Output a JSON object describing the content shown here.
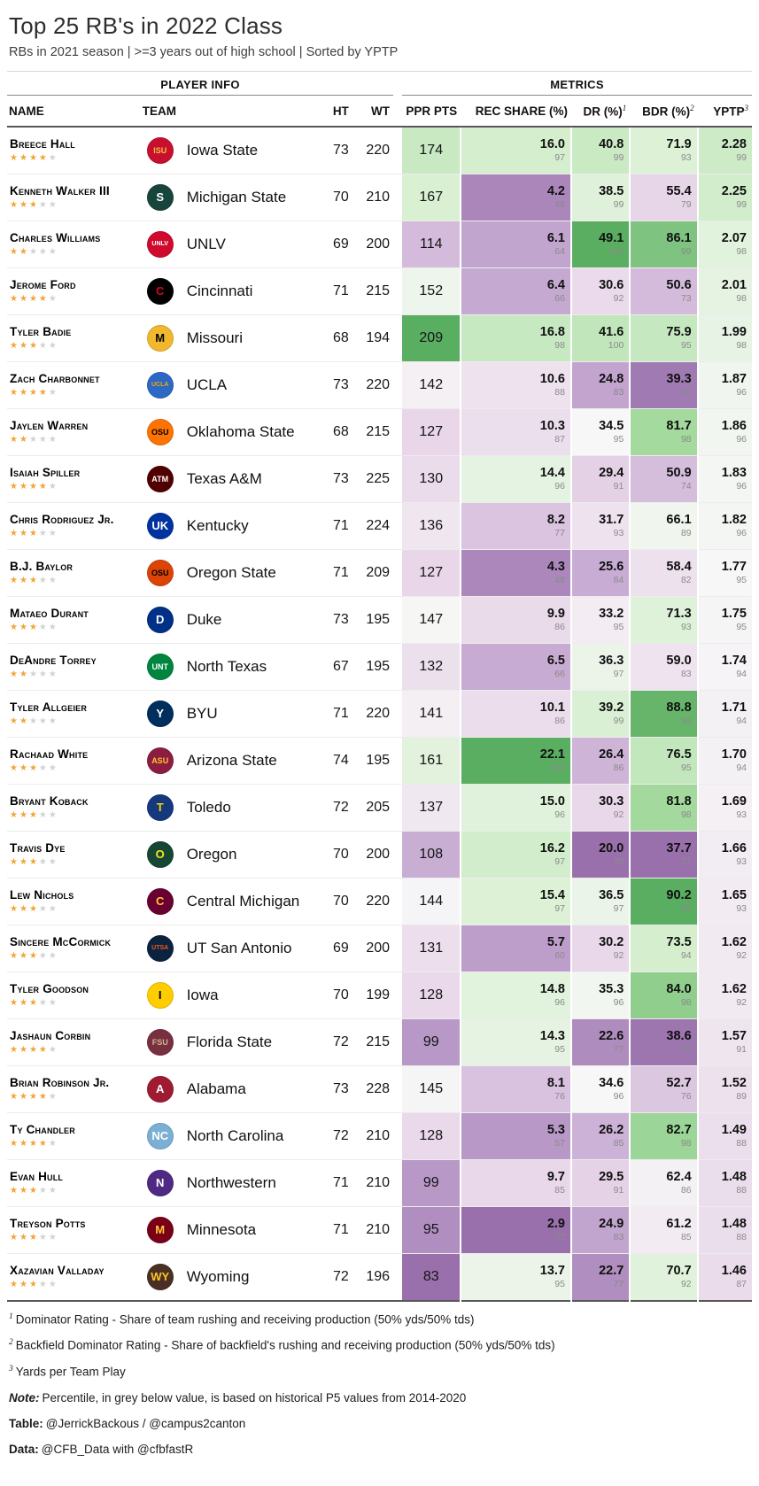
{
  "header": {
    "title": "Top 25 RB's in 2022 Class",
    "subtitle": "RBs in 2021 season | >=3 years out of high school | Sorted by YPTP"
  },
  "table": {
    "spanners": {
      "player_info": "PLAYER INFO",
      "metrics": "METRICS"
    },
    "columns": [
      {
        "key": "name",
        "label": "NAME"
      },
      {
        "key": "team",
        "label": "TEAM"
      },
      {
        "key": "ht",
        "label": "HT"
      },
      {
        "key": "wt",
        "label": "WT"
      },
      {
        "key": "ppr",
        "label": "PPR PTS"
      },
      {
        "key": "rec",
        "label": "REC SHARE (%)"
      },
      {
        "key": "dr",
        "label": "DR (%)",
        "sup": "1"
      },
      {
        "key": "bdr",
        "label": "BDR (%)",
        "sup": "2"
      },
      {
        "key": "yptp",
        "label": "YPTP",
        "sup": "3"
      }
    ]
  },
  "color_scale": {
    "palette": [
      "#9970ab",
      "#c2a5cf",
      "#e7d4e8",
      "#f7f7f7",
      "#d9f0d3",
      "#a6dba0",
      "#5aae61"
    ],
    "domains": {
      "ppr": [
        83,
        209
      ],
      "rec": [
        2.9,
        22.1
      ],
      "dr": [
        20.0,
        49.1
      ],
      "bdr": [
        37.7,
        90.2
      ],
      "yptp": [
        0.55,
        3.0
      ]
    },
    "percentile_text": "#8a8a8a",
    "star_gold": "#f2a43a",
    "star_grey": "#d2d2d2"
  },
  "chart_data": {
    "type": "table",
    "title": "Top 25 RB's in 2022 Class",
    "columns": [
      "NAME",
      "TEAM",
      "HT",
      "WT",
      "PPR PTS",
      "REC SHARE (%)",
      "DR (%)",
      "BDR (%)",
      "YPTP"
    ],
    "rows": [
      {
        "name": "Breece Hall",
        "stars": 4,
        "team": "Iowa State",
        "logo": {
          "abbr": "ISU",
          "bg": "#C8102E",
          "fg": "#F1BE48"
        },
        "ht": "73",
        "wt": "220",
        "ppr": "174",
        "rec": {
          "v": "16.0",
          "p": "97"
        },
        "dr": {
          "v": "40.8",
          "p": "99"
        },
        "bdr": {
          "v": "71.9",
          "p": "93"
        },
        "yptp": {
          "v": "2.28",
          "p": "99"
        }
      },
      {
        "name": "Kenneth Walker III",
        "stars": 3,
        "team": "Michigan State",
        "logo": {
          "abbr": "S",
          "bg": "#18453B",
          "fg": "#ffffff"
        },
        "ht": "70",
        "wt": "210",
        "ppr": "167",
        "rec": {
          "v": "4.2",
          "p": "46"
        },
        "dr": {
          "v": "38.5",
          "p": "99"
        },
        "bdr": {
          "v": "55.4",
          "p": "79"
        },
        "yptp": {
          "v": "2.25",
          "p": "99"
        }
      },
      {
        "name": "Charles Williams",
        "stars": 2,
        "team": "UNLV",
        "logo": {
          "abbr": "UNLV",
          "bg": "#CF0A2C",
          "fg": "#ffffff"
        },
        "ht": "69",
        "wt": "200",
        "ppr": "114",
        "rec": {
          "v": "6.1",
          "p": "64"
        },
        "dr": {
          "v": "49.1",
          "p": "100"
        },
        "bdr": {
          "v": "86.1",
          "p": "99"
        },
        "yptp": {
          "v": "2.07",
          "p": "98"
        }
      },
      {
        "name": "Jerome Ford",
        "stars": 4,
        "team": "Cincinnati",
        "logo": {
          "abbr": "C",
          "bg": "#000000",
          "fg": "#E00122"
        },
        "ht": "71",
        "wt": "215",
        "ppr": "152",
        "rec": {
          "v": "6.4",
          "p": "66"
        },
        "dr": {
          "v": "30.6",
          "p": "92"
        },
        "bdr": {
          "v": "50.6",
          "p": "73"
        },
        "yptp": {
          "v": "2.01",
          "p": "98"
        }
      },
      {
        "name": "Tyler Badie",
        "stars": 3,
        "team": "Missouri",
        "logo": {
          "abbr": "M",
          "bg": "#F1B82D",
          "fg": "#000000"
        },
        "ht": "68",
        "wt": "194",
        "ppr": "209",
        "rec": {
          "v": "16.8",
          "p": "98"
        },
        "dr": {
          "v": "41.6",
          "p": "100"
        },
        "bdr": {
          "v": "75.9",
          "p": "95"
        },
        "yptp": {
          "v": "1.99",
          "p": "98"
        }
      },
      {
        "name": "Zach Charbonnet",
        "stars": 4,
        "team": "UCLA",
        "logo": {
          "abbr": "UCLA",
          "bg": "#2D68C4",
          "fg": "#F2A900"
        },
        "ht": "73",
        "wt": "220",
        "ppr": "142",
        "rec": {
          "v": "10.6",
          "p": "88"
        },
        "dr": {
          "v": "24.8",
          "p": "83"
        },
        "bdr": {
          "v": "39.3",
          "p": "60"
        },
        "yptp": {
          "v": "1.87",
          "p": "96"
        }
      },
      {
        "name": "Jaylen Warren",
        "stars": 2,
        "team": "Oklahoma State",
        "logo": {
          "abbr": "OSU",
          "bg": "#FF7300",
          "fg": "#000000"
        },
        "ht": "68",
        "wt": "215",
        "ppr": "127",
        "rec": {
          "v": "10.3",
          "p": "87"
        },
        "dr": {
          "v": "34.5",
          "p": "95"
        },
        "bdr": {
          "v": "81.7",
          "p": "98"
        },
        "yptp": {
          "v": "1.86",
          "p": "96"
        }
      },
      {
        "name": "Isaiah Spiller",
        "stars": 4,
        "team": "Texas A&M",
        "logo": {
          "abbr": "ATM",
          "bg": "#500000",
          "fg": "#ffffff"
        },
        "ht": "73",
        "wt": "225",
        "ppr": "130",
        "rec": {
          "v": "14.4",
          "p": "96"
        },
        "dr": {
          "v": "29.4",
          "p": "91"
        },
        "bdr": {
          "v": "50.9",
          "p": "74"
        },
        "yptp": {
          "v": "1.83",
          "p": "96"
        }
      },
      {
        "name": "Chris Rodriguez Jr.",
        "stars": 3,
        "team": "Kentucky",
        "logo": {
          "abbr": "UK",
          "bg": "#0033A0",
          "fg": "#ffffff"
        },
        "ht": "71",
        "wt": "224",
        "ppr": "136",
        "rec": {
          "v": "8.2",
          "p": "77"
        },
        "dr": {
          "v": "31.7",
          "p": "93"
        },
        "bdr": {
          "v": "66.1",
          "p": "89"
        },
        "yptp": {
          "v": "1.82",
          "p": "96"
        }
      },
      {
        "name": "B.J. Baylor",
        "stars": 3,
        "team": "Oregon State",
        "logo": {
          "abbr": "OSU",
          "bg": "#DC4405",
          "fg": "#000000"
        },
        "ht": "71",
        "wt": "209",
        "ppr": "127",
        "rec": {
          "v": "4.3",
          "p": "48"
        },
        "dr": {
          "v": "25.6",
          "p": "84"
        },
        "bdr": {
          "v": "58.4",
          "p": "82"
        },
        "yptp": {
          "v": "1.77",
          "p": "95"
        }
      },
      {
        "name": "Mataeo Durant",
        "stars": 3,
        "team": "Duke",
        "logo": {
          "abbr": "D",
          "bg": "#003087",
          "fg": "#ffffff"
        },
        "ht": "73",
        "wt": "195",
        "ppr": "147",
        "rec": {
          "v": "9.9",
          "p": "86"
        },
        "dr": {
          "v": "33.2",
          "p": "95"
        },
        "bdr": {
          "v": "71.3",
          "p": "93"
        },
        "yptp": {
          "v": "1.75",
          "p": "95"
        }
      },
      {
        "name": "DeAndre Torrey",
        "stars": 2,
        "team": "North Texas",
        "logo": {
          "abbr": "UNT",
          "bg": "#00853E",
          "fg": "#ffffff"
        },
        "ht": "67",
        "wt": "195",
        "ppr": "132",
        "rec": {
          "v": "6.5",
          "p": "66"
        },
        "dr": {
          "v": "36.3",
          "p": "97"
        },
        "bdr": {
          "v": "59.0",
          "p": "83"
        },
        "yptp": {
          "v": "1.74",
          "p": "94"
        }
      },
      {
        "name": "Tyler Allgeier",
        "stars": 2,
        "team": "BYU",
        "logo": {
          "abbr": "Y",
          "bg": "#002E5D",
          "fg": "#ffffff"
        },
        "ht": "71",
        "wt": "220",
        "ppr": "141",
        "rec": {
          "v": "10.1",
          "p": "86"
        },
        "dr": {
          "v": "39.2",
          "p": "99"
        },
        "bdr": {
          "v": "88.8",
          "p": "99"
        },
        "yptp": {
          "v": "1.71",
          "p": "94"
        }
      },
      {
        "name": "Rachaad White",
        "stars": 3,
        "team": "Arizona State",
        "logo": {
          "abbr": "ASU",
          "bg": "#8C1D40",
          "fg": "#FFC627"
        },
        "ht": "74",
        "wt": "195",
        "ppr": "161",
        "rec": {
          "v": "22.1",
          "p": "100"
        },
        "dr": {
          "v": "26.4",
          "p": "86"
        },
        "bdr": {
          "v": "76.5",
          "p": "95"
        },
        "yptp": {
          "v": "1.70",
          "p": "94"
        }
      },
      {
        "name": "Bryant Koback",
        "stars": 3,
        "team": "Toledo",
        "logo": {
          "abbr": "T",
          "bg": "#15397F",
          "fg": "#FFD100"
        },
        "ht": "72",
        "wt": "205",
        "ppr": "137",
        "rec": {
          "v": "15.0",
          "p": "96"
        },
        "dr": {
          "v": "30.3",
          "p": "92"
        },
        "bdr": {
          "v": "81.8",
          "p": "98"
        },
        "yptp": {
          "v": "1.69",
          "p": "93"
        }
      },
      {
        "name": "Travis Dye",
        "stars": 3,
        "team": "Oregon",
        "logo": {
          "abbr": "O",
          "bg": "#154733",
          "fg": "#FEE123"
        },
        "ht": "70",
        "wt": "200",
        "ppr": "108",
        "rec": {
          "v": "16.2",
          "p": "97"
        },
        "dr": {
          "v": "20.0",
          "p": "70"
        },
        "bdr": {
          "v": "37.7",
          "p": "57"
        },
        "yptp": {
          "v": "1.66",
          "p": "93"
        }
      },
      {
        "name": "Lew Nichols",
        "stars": 3,
        "team": "Central Michigan",
        "logo": {
          "abbr": "C",
          "bg": "#6A0032",
          "fg": "#FFC82E"
        },
        "ht": "70",
        "wt": "220",
        "ppr": "144",
        "rec": {
          "v": "15.4",
          "p": "97"
        },
        "dr": {
          "v": "36.5",
          "p": "97"
        },
        "bdr": {
          "v": "90.2",
          "p": "99"
        },
        "yptp": {
          "v": "1.65",
          "p": "93"
        }
      },
      {
        "name": "Sincere McCormick",
        "stars": 3,
        "team": "UT San Antonio",
        "logo": {
          "abbr": "UTSA",
          "bg": "#0C2340",
          "fg": "#F15A22"
        },
        "ht": "69",
        "wt": "200",
        "ppr": "131",
        "rec": {
          "v": "5.7",
          "p": "60"
        },
        "dr": {
          "v": "30.2",
          "p": "92"
        },
        "bdr": {
          "v": "73.5",
          "p": "94"
        },
        "yptp": {
          "v": "1.62",
          "p": "92"
        }
      },
      {
        "name": "Tyler Goodson",
        "stars": 3,
        "team": "Iowa",
        "logo": {
          "abbr": "I",
          "bg": "#FFCD00",
          "fg": "#000000"
        },
        "ht": "70",
        "wt": "199",
        "ppr": "128",
        "rec": {
          "v": "14.8",
          "p": "96"
        },
        "dr": {
          "v": "35.3",
          "p": "96"
        },
        "bdr": {
          "v": "84.0",
          "p": "98"
        },
        "yptp": {
          "v": "1.62",
          "p": "92"
        }
      },
      {
        "name": "Jashaun Corbin",
        "stars": 4,
        "team": "Florida State",
        "logo": {
          "abbr": "FSU",
          "bg": "#782F40",
          "fg": "#CEB888"
        },
        "ht": "72",
        "wt": "215",
        "ppr": "99",
        "rec": {
          "v": "14.3",
          "p": "95"
        },
        "dr": {
          "v": "22.6",
          "p": "77"
        },
        "bdr": {
          "v": "38.6",
          "p": "59"
        },
        "yptp": {
          "v": "1.57",
          "p": "91"
        }
      },
      {
        "name": "Brian Robinson Jr.",
        "stars": 4,
        "team": "Alabama",
        "logo": {
          "abbr": "A",
          "bg": "#9E1B32",
          "fg": "#ffffff"
        },
        "ht": "73",
        "wt": "228",
        "ppr": "145",
        "rec": {
          "v": "8.1",
          "p": "76"
        },
        "dr": {
          "v": "34.6",
          "p": "96"
        },
        "bdr": {
          "v": "52.7",
          "p": "76"
        },
        "yptp": {
          "v": "1.52",
          "p": "89"
        }
      },
      {
        "name": "Ty Chandler",
        "stars": 4,
        "team": "North Carolina",
        "logo": {
          "abbr": "NC",
          "bg": "#7BAFD4",
          "fg": "#ffffff"
        },
        "ht": "72",
        "wt": "210",
        "ppr": "128",
        "rec": {
          "v": "5.3",
          "p": "57"
        },
        "dr": {
          "v": "26.2",
          "p": "85"
        },
        "bdr": {
          "v": "82.7",
          "p": "98"
        },
        "yptp": {
          "v": "1.49",
          "p": "88"
        }
      },
      {
        "name": "Evan Hull",
        "stars": 3,
        "team": "Northwestern",
        "logo": {
          "abbr": "N",
          "bg": "#4E2A84",
          "fg": "#ffffff"
        },
        "ht": "71",
        "wt": "210",
        "ppr": "99",
        "rec": {
          "v": "9.7",
          "p": "85"
        },
        "dr": {
          "v": "29.5",
          "p": "91"
        },
        "bdr": {
          "v": "62.4",
          "p": "86"
        },
        "yptp": {
          "v": "1.48",
          "p": "88"
        }
      },
      {
        "name": "Treyson Potts",
        "stars": 3,
        "team": "Minnesota",
        "logo": {
          "abbr": "M",
          "bg": "#7A0019",
          "fg": "#FFCC33"
        },
        "ht": "71",
        "wt": "210",
        "ppr": "95",
        "rec": {
          "v": "2.9",
          "p": "32"
        },
        "dr": {
          "v": "24.9",
          "p": "83"
        },
        "bdr": {
          "v": "61.2",
          "p": "85"
        },
        "yptp": {
          "v": "1.48",
          "p": "88"
        }
      },
      {
        "name": "Xazavian Valladay",
        "stars": 3,
        "team": "Wyoming",
        "logo": {
          "abbr": "WY",
          "bg": "#492F24",
          "fg": "#FFC425"
        },
        "ht": "72",
        "wt": "196",
        "ppr": "83",
        "rec": {
          "v": "13.7",
          "p": "95"
        },
        "dr": {
          "v": "22.7",
          "p": "77"
        },
        "bdr": {
          "v": "70.7",
          "p": "92"
        },
        "yptp": {
          "v": "1.46",
          "p": "87"
        }
      }
    ]
  },
  "footnotes": [
    {
      "sup": "1",
      "text": "Dominator Rating - Share of team rushing and receiving production (50% yds/50% tds)"
    },
    {
      "sup": "2",
      "text": "Backfield Dominator Rating - Share of backfield's rushing and receiving production (50% yds/50% tds)"
    },
    {
      "sup": "3",
      "text": "Yards per Team Play"
    }
  ],
  "notes": {
    "note_label": "Note:",
    "note_text": "Percentile, in grey below value, is based on historical P5 values from 2014-2020",
    "table_label": "Table:",
    "table_text": "@JerrickBackous / @campus2canton",
    "data_label": "Data:",
    "data_text": "@CFB_Data with @cfbfastR"
  }
}
